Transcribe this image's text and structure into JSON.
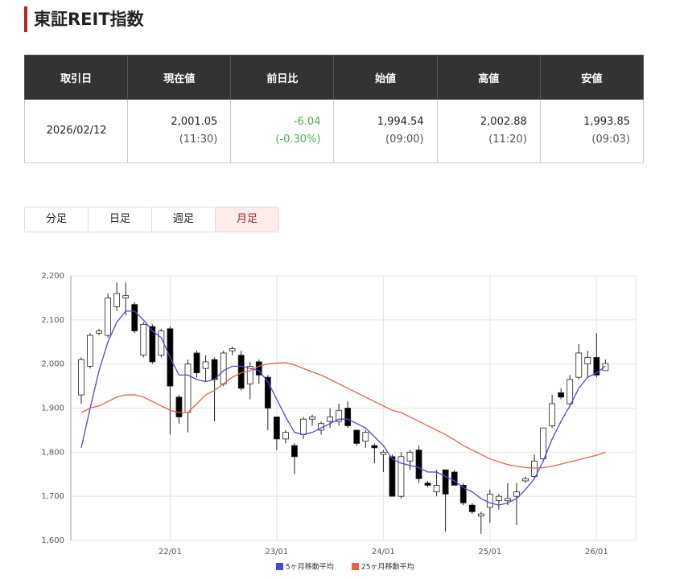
{
  "header": {
    "title": "東証REIT指数"
  },
  "table": {
    "headers": [
      "取引日",
      "現在値",
      "前日比",
      "始値",
      "高値",
      "安値"
    ],
    "row": [
      "2026/02/12",
      {
        "value": "2,001.05",
        "time": "(11:30)"
      },
      {
        "value": "-6.04",
        "time": "(-0.30%)",
        "color": "#4caf50"
      },
      {
        "value": "1,994.54",
        "time": "(09:00)"
      },
      {
        "value": "2,002.88",
        "time": "(11:20)"
      },
      {
        "value": "1,993.85",
        "time": "(09:03)"
      }
    ]
  },
  "tabs": {
    "items": [
      "分足",
      "日足",
      "週足",
      "月足"
    ],
    "active": 3
  },
  "chart_data": {
    "type": "candlestick",
    "categories": [
      null,
      null,
      null,
      null,
      null,
      null,
      null,
      null,
      null,
      null,
      "22/01",
      null,
      null,
      null,
      null,
      null,
      null,
      null,
      null,
      null,
      null,
      null,
      "23/01",
      null,
      null,
      null,
      null,
      null,
      null,
      null,
      null,
      null,
      null,
      null,
      "24/01",
      null,
      null,
      null,
      null,
      null,
      null,
      null,
      null,
      null,
      null,
      null,
      "25/01",
      null,
      null,
      null,
      null,
      null,
      null,
      null,
      null,
      null,
      null,
      null,
      "26/01",
      null
    ],
    "open": [
      1930,
      1995,
      2070,
      2065,
      2130,
      2150,
      2135,
      2020,
      2085,
      2020,
      2080,
      1925,
      1890,
      2025,
      1990,
      2010,
      1955,
      2030,
      2020,
      1955,
      2005,
      1970,
      1880,
      1830,
      1815,
      1840,
      1875,
      1850,
      1870,
      1870,
      1900,
      1850,
      1825,
      1815,
      1795,
      1790,
      1700,
      1780,
      1805,
      1730,
      1710,
      1760,
      1755,
      1725,
      1680,
      1655,
      1675,
      1690,
      1690,
      1700,
      1735,
      1745,
      1785,
      1860,
      1935,
      1910,
      1970,
      2000,
      2015,
      1985
    ],
    "high": [
      2015,
      2070,
      2080,
      2160,
      2185,
      2185,
      2140,
      2095,
      2090,
      2080,
      2085,
      1930,
      2010,
      2030,
      2020,
      2015,
      2030,
      2040,
      2030,
      2005,
      2010,
      1975,
      1880,
      1850,
      1820,
      1880,
      1885,
      1870,
      1900,
      1910,
      1915,
      1850,
      1850,
      1820,
      1805,
      1795,
      1800,
      1805,
      1815,
      1735,
      1760,
      1760,
      1760,
      1730,
      1685,
      1665,
      1715,
      1705,
      1730,
      1730,
      1745,
      1795,
      1855,
      1930,
      1945,
      1975,
      2045,
      2030,
      2070,
      2010
    ],
    "low": [
      1910,
      1990,
      2065,
      2060,
      2120,
      2110,
      2070,
      2015,
      2000,
      2015,
      1840,
      1865,
      1845,
      1970,
      1960,
      1870,
      1950,
      2020,
      1940,
      1920,
      1955,
      1850,
      1805,
      1820,
      1750,
      1830,
      1860,
      1840,
      1855,
      1860,
      1855,
      1815,
      1810,
      1775,
      1755,
      1700,
      1695,
      1760,
      1730,
      1720,
      1700,
      1620,
      1725,
      1680,
      1660,
      1615,
      1640,
      1670,
      1680,
      1635,
      1730,
      1740,
      1780,
      1855,
      1920,
      1905,
      1965,
      1970,
      1970,
      1985
    ],
    "close": [
      2010,
      2065,
      2075,
      2150,
      2160,
      2155,
      2075,
      2090,
      2005,
      2075,
      1950,
      1880,
      2000,
      1980,
      2005,
      1965,
      2025,
      2035,
      1945,
      1995,
      1975,
      1900,
      1830,
      1845,
      1790,
      1875,
      1880,
      1865,
      1880,
      1895,
      1860,
      1820,
      1845,
      1810,
      1800,
      1700,
      1790,
      1800,
      1740,
      1725,
      1725,
      1705,
      1725,
      1685,
      1665,
      1660,
      1705,
      1700,
      1695,
      1710,
      1740,
      1780,
      1855,
      1910,
      1925,
      1965,
      2025,
      2015,
      1975,
      2001
    ],
    "up_color": "#ffffff",
    "down_color": "#000000",
    "series": [
      {
        "name": "5ヶ月移動平均",
        "color": "#4a4ad8",
        "values": [
          1810,
          1900,
          1985,
          2050,
          2095,
          2120,
          2120,
          2100,
          2075,
          2060,
          2015,
          1975,
          1975,
          1965,
          1960,
          1965,
          1985,
          1995,
          1995,
          1990,
          1985,
          1960,
          1920,
          1880,
          1845,
          1840,
          1845,
          1855,
          1865,
          1875,
          1875,
          1865,
          1855,
          1835,
          1815,
          1785,
          1775,
          1770,
          1765,
          1755,
          1755,
          1745,
          1735,
          1720,
          1710,
          1695,
          1685,
          1680,
          1685,
          1695,
          1715,
          1740,
          1780,
          1830,
          1870,
          1905,
          1945,
          1970,
          1980,
          1995
        ]
      },
      {
        "name": "25ヶ月移動平均",
        "color": "#e8604c",
        "values": [
          1890,
          1900,
          1905,
          1915,
          1925,
          1930,
          1930,
          1925,
          1915,
          1905,
          1895,
          1890,
          1890,
          1910,
          1930,
          1940,
          1955,
          1970,
          1980,
          1985,
          1995,
          2000,
          2002,
          2003,
          1998,
          1990,
          1982,
          1975,
          1965,
          1955,
          1945,
          1935,
          1925,
          1915,
          1905,
          1895,
          1890,
          1880,
          1870,
          1860,
          1850,
          1840,
          1828,
          1815,
          1805,
          1795,
          1785,
          1778,
          1772,
          1768,
          1765,
          1764,
          1765,
          1768,
          1773,
          1778,
          1783,
          1788,
          1793,
          1800
        ]
      }
    ],
    "ylim": [
      1600,
      2200
    ],
    "yticks": [
      {
        "value": 1600,
        "label": "1,600"
      },
      {
        "value": 1700,
        "label": "1,700"
      },
      {
        "value": 1800,
        "label": "1,800"
      },
      {
        "value": 1900,
        "label": "1,900"
      },
      {
        "value": 2000,
        "label": "2,000"
      },
      {
        "value": 2100,
        "label": "2,100"
      },
      {
        "value": 2200,
        "label": "2,200"
      }
    ],
    "grid": true
  }
}
